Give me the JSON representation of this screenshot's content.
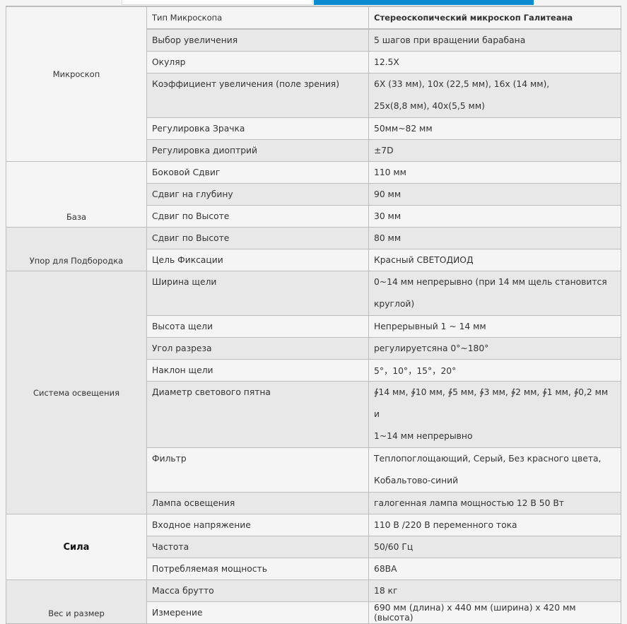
{
  "colors": {
    "accent": "#0a8ad0",
    "row_light": "#f5f5f5",
    "row_dark": "#e8e8e8"
  },
  "groups": [
    {
      "label": "Микроскоп",
      "rows": [
        {
          "key": "Тип Микроскопа",
          "value": "Стереоскопический микроскоп Галитеана"
        },
        {
          "key": "Выбор увеличения",
          "value": "5 шагов при вращении барабана"
        },
        {
          "key": "Окуляр",
          "value": "12.5X"
        },
        {
          "key": "Коэффициент увеличения (поле зрения)",
          "value": "6X (33 мм), 10x (22,5 мм), 16x (14 мм),",
          "value2": "25x(8,8 мм), 40x(5,5 мм)"
        },
        {
          "key": "Регулировка Зрачка",
          "value": "50мм~82 мм"
        },
        {
          "key": "Регулировка диоптрий",
          "value": "±7D"
        }
      ]
    },
    {
      "label": "База",
      "rows": [
        {
          "key": "Боковой Сдвиг",
          "value": "110 мм"
        },
        {
          "key": "Сдвиг на глубину",
          "value": "90 мм"
        },
        {
          "key": "Сдвиг по Высоте",
          "value": "30 мм"
        }
      ]
    },
    {
      "label": "Упор для Подбородка",
      "rows": [
        {
          "key": "Сдвиг по Высоте",
          "value": "80 мм"
        },
        {
          "key": "Цель Фиксации",
          "value": "Красный СВЕТОДИОД"
        }
      ]
    },
    {
      "label": "Система освещения",
      "rows": [
        {
          "key": "Ширина щели",
          "value": "0~14 мм непрерывно (при 14 мм щель становится",
          "value2": "круглой)"
        },
        {
          "key": "Высота щели",
          "value": "Непрерывный 1 ~ 14 мм"
        },
        {
          "key": "Угол разреза",
          "value": "регулируетсяна 0°~180°"
        },
        {
          "key": "Наклон щели",
          "value": "5°，10°，15°，20°"
        },
        {
          "key": "Диаметр светового пятна",
          "value": "∲14 мм, ∲10 мм, ∲5 мм, ∲3 мм, ∲2 мм, ∲1 мм, ∲0,2 мм и",
          "value2": "1~14 мм непрерывно"
        },
        {
          "key": "Фильтр",
          "value": "Теплопоглощающий, Серый, Без красного цвета,",
          "value2": "Кобальтово-синий"
        },
        {
          "key": "Лампа освещения",
          "value": "галогенная лампа мощностью 12 В 50 Вт"
        }
      ]
    },
    {
      "label": "Сила",
      "rows": [
        {
          "key": "Входное напряжение",
          "value": "110 В /220 В переменного тока"
        },
        {
          "key": "Частота",
          "value": "50/60 Гц"
        },
        {
          "key": "Потребляемая мощность",
          "value": "68ВА"
        }
      ]
    },
    {
      "label": "Вес и размер",
      "rows": [
        {
          "key": "Масса брутто",
          "value": "18 кг"
        },
        {
          "key": "Измерение",
          "value": "690 мм (длина) x 440 мм (ширина) x 420 мм (высота)"
        }
      ]
    }
  ]
}
